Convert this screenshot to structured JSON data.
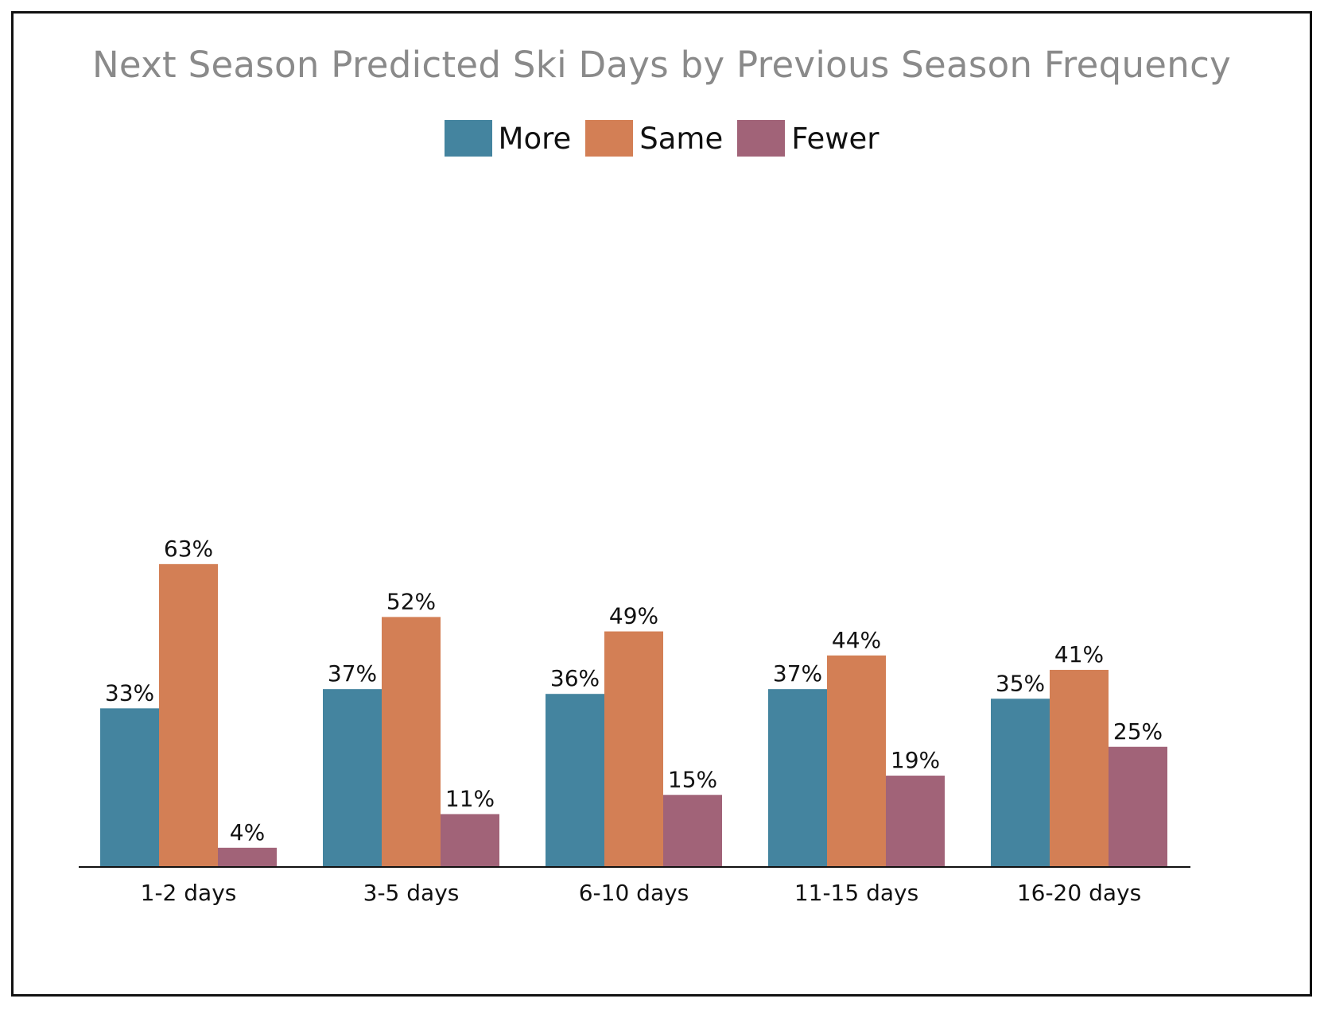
{
  "chart_data": {
    "type": "bar",
    "title": "Next Season Predicted Ski Days by Previous Season Frequency",
    "categories": [
      "1-2 days",
      "3-5 days",
      "6-10 days",
      "11-15 days",
      "16-20 days"
    ],
    "series": [
      {
        "name": "More",
        "color": "#44849f",
        "values": [
          33,
          37,
          36,
          37,
          35
        ],
        "labels": [
          "33%",
          "37%",
          "36%",
          "37%",
          "35%"
        ]
      },
      {
        "name": "Same",
        "color": "#d37f55",
        "values": [
          63,
          52,
          49,
          44,
          41
        ],
        "labels": [
          "63%",
          "52%",
          "49%",
          "44%",
          "41%"
        ]
      },
      {
        "name": "Fewer",
        "color": "#a16378",
        "values": [
          4,
          11,
          15,
          19,
          25
        ],
        "labels": [
          "4%",
          "11%",
          "15%",
          "19%",
          "25%"
        ]
      }
    ],
    "xlabel": "",
    "ylabel": "",
    "ylim": [
      0,
      70
    ],
    "grid": false,
    "legend_position": "top-center"
  }
}
